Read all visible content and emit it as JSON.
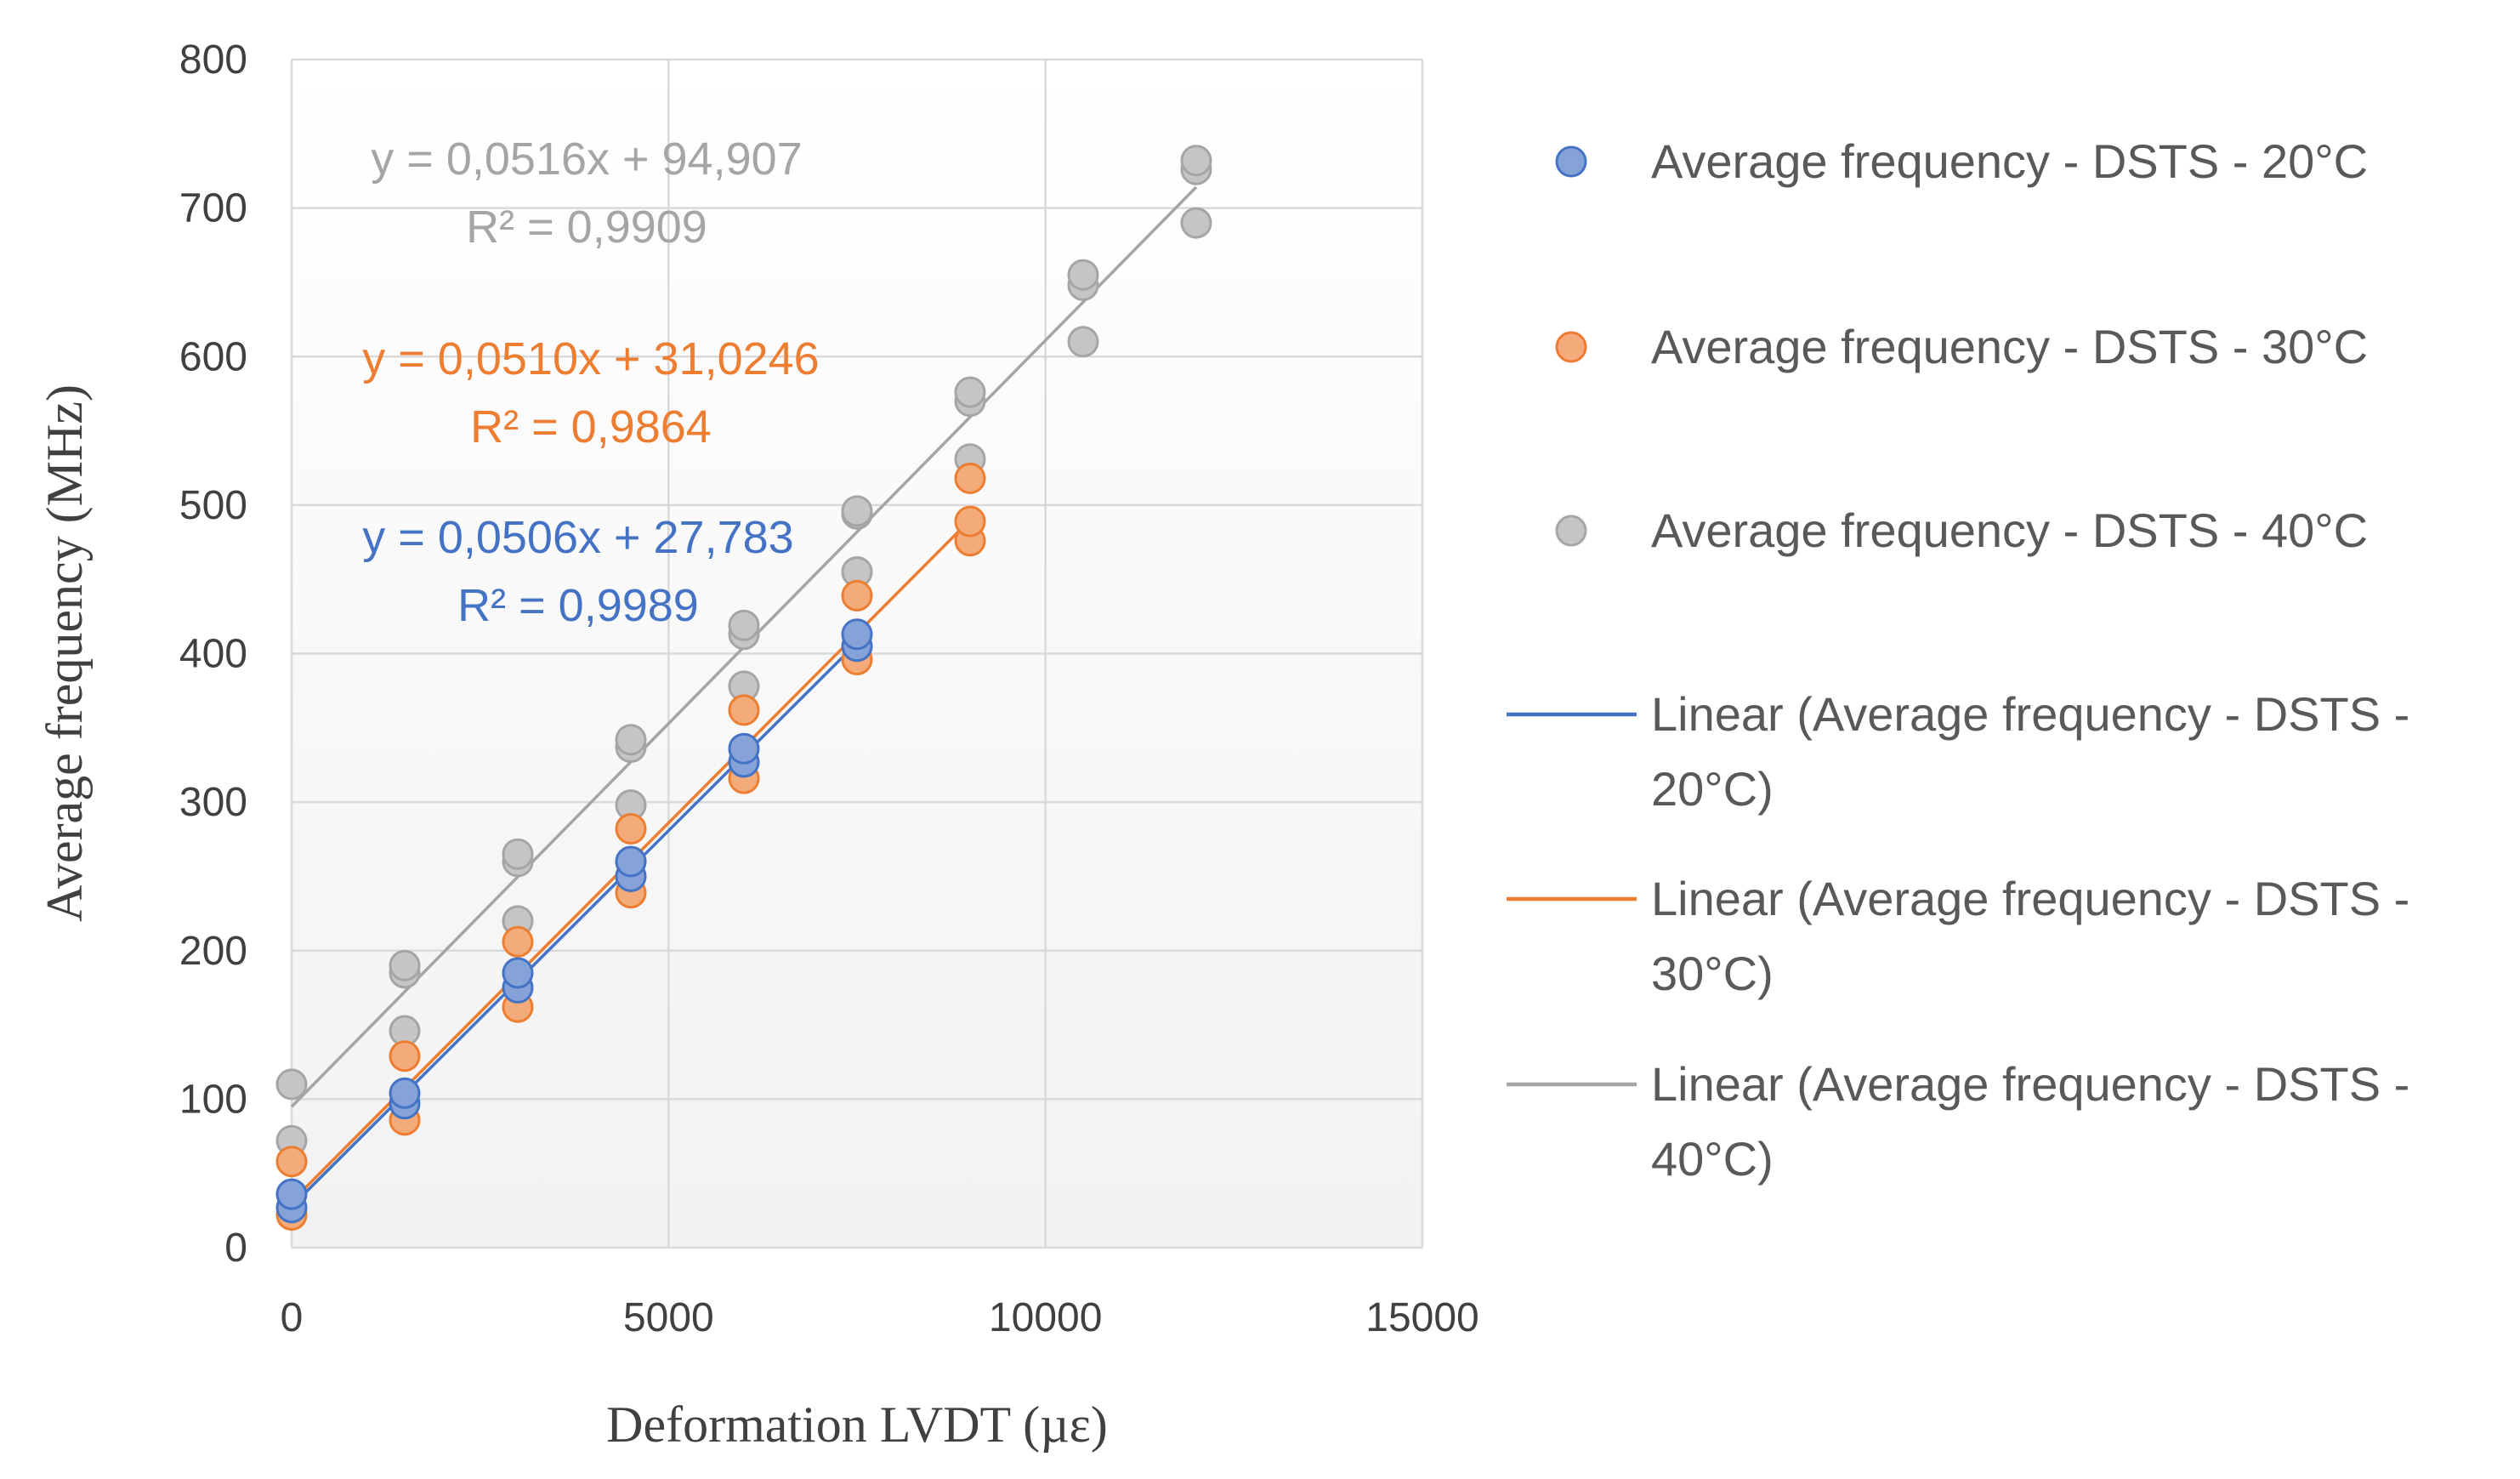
{
  "chart_data": {
    "type": "scatter",
    "title": "",
    "xlabel": "Deformation LVDT (µε)",
    "ylabel": "Average frequency (MHz)",
    "xlim": [
      0,
      15000
    ],
    "ylim": [
      0,
      800
    ],
    "x_ticks": [
      0,
      5000,
      10000,
      15000
    ],
    "x_tick_labels": [
      "0",
      "5000",
      "10000",
      "15000"
    ],
    "y_ticks": [
      0,
      100,
      200,
      300,
      400,
      500,
      600,
      700,
      800
    ],
    "y_tick_labels": [
      "0",
      "100",
      "200",
      "300",
      "400",
      "500",
      "600",
      "700",
      "800"
    ],
    "grid": true,
    "legend_position": "right",
    "series": [
      {
        "name": "Average frequency - DSTS - 20°C",
        "color": "#4472C4",
        "x": [
          0,
          0,
          1500,
          1500,
          3000,
          3000,
          4500,
          4500,
          6000,
          6000,
          7500,
          7500
        ],
        "y": [
          27,
          36,
          97,
          104,
          175,
          185,
          250,
          260,
          327,
          336,
          405,
          413
        ],
        "trend_label": "Linear (Average frequency - DSTS - 20°C)",
        "trend": {
          "slope": 0.0506,
          "intercept": 27.783,
          "x_range": [
            0,
            7500
          ]
        },
        "equation": "y = 0,0506x + 27,783",
        "r2": "R² = 0,9989"
      },
      {
        "name": "Average frequency - DSTS - 30°C",
        "color": "#ED7D31",
        "x": [
          0,
          0,
          1500,
          1500,
          3000,
          3000,
          4500,
          4500,
          6000,
          6000,
          7500,
          7500,
          9000,
          9000,
          9000
        ],
        "y": [
          22,
          58,
          86,
          129,
          162,
          206,
          239,
          282,
          316,
          362,
          396,
          439,
          476,
          489,
          518
        ],
        "trend_label": "Linear (Average frequency - DSTS - 30°C)",
        "trend": {
          "slope": 0.051,
          "intercept": 31.0246,
          "x_range": [
            0,
            9000
          ]
        },
        "equation": "y = 0,0510x + 31,0246",
        "r2": "R² = 0,9864"
      },
      {
        "name": "Average frequency - DSTS - 40°C",
        "color": "#A5A5A5",
        "x": [
          0,
          0,
          1500,
          1500,
          1500,
          3000,
          3000,
          3000,
          4500,
          4500,
          4500,
          6000,
          6000,
          6000,
          7500,
          7500,
          7500,
          9000,
          9000,
          9000,
          10500,
          10500,
          10500,
          12000,
          12000,
          12000
        ],
        "y": [
          72,
          110,
          146,
          185,
          190,
          220,
          260,
          265,
          298,
          337,
          342,
          378,
          413,
          419,
          455,
          494,
          496,
          531,
          570,
          576,
          610,
          648,
          655,
          690,
          726,
          732
        ],
        "trend_label": "Linear (Average frequency - DSTS - 40°C)",
        "trend": {
          "slope": 0.0516,
          "intercept": 94.907,
          "x_range": [
            0,
            12000
          ]
        },
        "equation": "y = 0,0516x + 94,907",
        "r2": "R² = 0,9909"
      }
    ],
    "legend": {
      "scatter_items": [
        "Average frequency - DSTS - 20°C",
        "Average frequency - DSTS - 30°C",
        "Average frequency - DSTS - 40°C"
      ],
      "trend_items": [
        {
          "line1": "Linear (Average frequency - DSTS -",
          "line2": "20°C)"
        },
        {
          "line1": "Linear (Average frequency - DSTS -",
          "line2": "30°C)"
        },
        {
          "line1": "Linear (Average frequency - DSTS -",
          "line2": "40°C)"
        }
      ]
    },
    "colors": {
      "grid": "#D9D9D9",
      "axis_text": "#404040",
      "legend_text": "#595959",
      "plot_bg_top": "#FFFFFF",
      "plot_bg_bottom": "#F2F2F2"
    }
  }
}
